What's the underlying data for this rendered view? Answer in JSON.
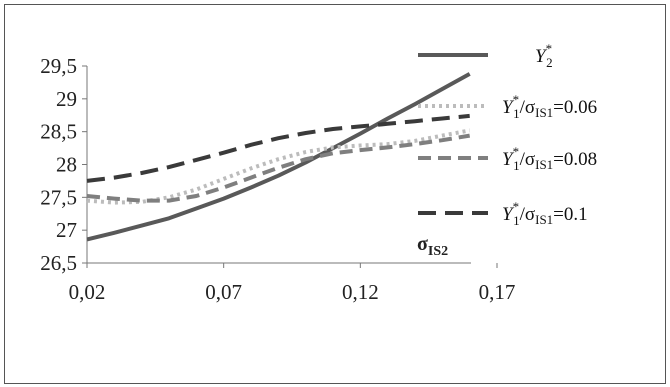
{
  "chart_data": {
    "type": "line",
    "xlabel": "σIS2",
    "x_ticks": [
      "0,02",
      "0,07",
      "0,12",
      "0,17"
    ],
    "y_ticks": [
      "26,5",
      "27",
      "27,5",
      "28",
      "28,5",
      "29",
      "29,5"
    ],
    "xlim": [
      0.02,
      0.17
    ],
    "ylim": [
      26.5,
      29.5
    ],
    "grid": false,
    "legend_position": "right",
    "series": [
      {
        "name": "Y2*",
        "color": "#595959",
        "style": "solid",
        "x": [
          0.02,
          0.03,
          0.04,
          0.05,
          0.06,
          0.07,
          0.08,
          0.09,
          0.1,
          0.11,
          0.12,
          0.13,
          0.14,
          0.15,
          0.16
        ],
        "y": [
          26.86,
          26.96,
          27.07,
          27.18,
          27.33,
          27.48,
          27.65,
          27.83,
          28.03,
          28.25,
          28.47,
          28.7,
          28.92,
          29.15,
          29.38
        ]
      },
      {
        "name": "Y1*/σIS1=0.06",
        "color": "#bcbcbc",
        "style": "dotted",
        "x": [
          0.02,
          0.03,
          0.04,
          0.05,
          0.06,
          0.07,
          0.08,
          0.09,
          0.1,
          0.11,
          0.12,
          0.13,
          0.14,
          0.15,
          0.16
        ],
        "y": [
          27.45,
          27.42,
          27.43,
          27.5,
          27.62,
          27.78,
          27.94,
          28.08,
          28.19,
          28.26,
          28.29,
          28.31,
          28.36,
          28.44,
          28.52
        ]
      },
      {
        "name": "Y1*/σIS1=0.08",
        "color": "#7f7f7f",
        "style": "dashed",
        "x": [
          0.02,
          0.03,
          0.04,
          0.05,
          0.06,
          0.07,
          0.08,
          0.09,
          0.1,
          0.11,
          0.12,
          0.13,
          0.14,
          0.15,
          0.16
        ],
        "y": [
          27.52,
          27.48,
          27.45,
          27.45,
          27.52,
          27.65,
          27.8,
          27.95,
          28.08,
          28.17,
          28.22,
          28.26,
          28.31,
          28.37,
          28.44
        ]
      },
      {
        "name": "Y1*/σIS1=0.1",
        "color": "#3a3a3a",
        "style": "dashed",
        "x": [
          0.02,
          0.03,
          0.04,
          0.05,
          0.06,
          0.07,
          0.08,
          0.09,
          0.1,
          0.11,
          0.12,
          0.13,
          0.14,
          0.15,
          0.16
        ],
        "y": [
          27.75,
          27.8,
          27.87,
          27.96,
          28.07,
          28.18,
          28.3,
          28.4,
          28.48,
          28.54,
          28.58,
          28.62,
          28.66,
          28.7,
          28.74
        ]
      }
    ],
    "legend": [
      {
        "symbol": "Y",
        "sup": "*",
        "sub": "2",
        "rest": ""
      },
      {
        "symbol": "Y",
        "sup": "*",
        "sub": "1",
        "rest": "/σ",
        "rest_sub": "IS1",
        "tail": "=0.06"
      },
      {
        "symbol": "Y",
        "sup": "*",
        "sub": "1",
        "rest": "/σ",
        "rest_sub": "IS1",
        "tail": "=0.08"
      },
      {
        "symbol": "Y",
        "sup": "*",
        "sub": "1",
        "rest": "/σ",
        "rest_sub": "IS1",
        "tail": "=0.1"
      }
    ]
  }
}
